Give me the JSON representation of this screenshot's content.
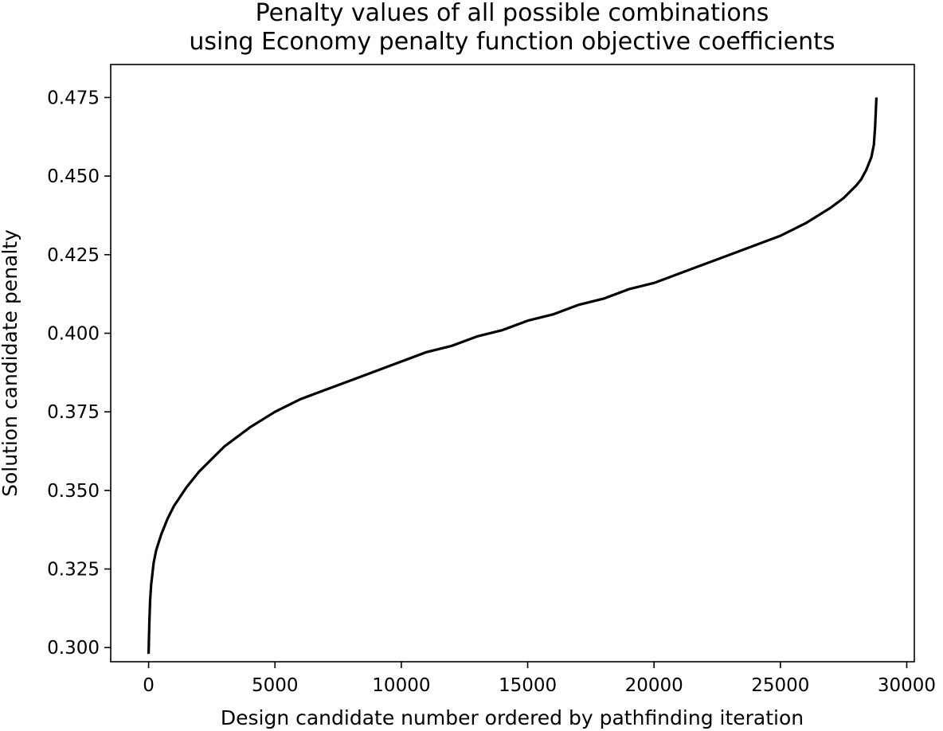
{
  "chart_data": {
    "type": "line",
    "title_lines": [
      "Penalty values of all possible combinations",
      "using Economy penalty function objective coefficients"
    ],
    "xlabel": "Design candidate number ordered by pathfinding iteration",
    "ylabel": "Solution candidate penalty",
    "xlim": [
      -1500,
      30300
    ],
    "ylim": [
      0.2955,
      0.4855
    ],
    "x_ticks": [
      0,
      5000,
      10000,
      15000,
      20000,
      25000,
      30000
    ],
    "x_tick_labels": [
      "0",
      "5000",
      "10000",
      "15000",
      "20000",
      "25000",
      "30000"
    ],
    "y_ticks": [
      0.3,
      0.325,
      0.35,
      0.375,
      0.4,
      0.425,
      0.45,
      0.475
    ],
    "y_tick_labels": [
      "0.300",
      "0.325",
      "0.350",
      "0.375",
      "0.400",
      "0.425",
      "0.450",
      "0.475"
    ],
    "grid": false,
    "line_color": "#000000",
    "series": [
      {
        "x": [
          0,
          25,
          60,
          100,
          200,
          300,
          500,
          750,
          1000,
          1500,
          2000,
          2500,
          3000,
          4000,
          5000,
          6000,
          7000,
          8000,
          9000,
          10000,
          11000,
          12000,
          13000,
          14000,
          15000,
          16000,
          17000,
          18000,
          19000,
          20000,
          21000,
          22000,
          23000,
          24000,
          25000,
          26000,
          27000,
          27500,
          28000,
          28200,
          28400,
          28500,
          28600,
          28700,
          28750,
          28800
        ],
        "y": [
          0.298,
          0.307,
          0.315,
          0.32,
          0.327,
          0.331,
          0.336,
          0.341,
          0.345,
          0.351,
          0.356,
          0.36,
          0.364,
          0.37,
          0.375,
          0.379,
          0.382,
          0.385,
          0.388,
          0.391,
          0.394,
          0.396,
          0.399,
          0.401,
          0.404,
          0.406,
          0.409,
          0.411,
          0.414,
          0.416,
          0.419,
          0.422,
          0.425,
          0.428,
          0.431,
          0.435,
          0.44,
          0.443,
          0.447,
          0.449,
          0.452,
          0.454,
          0.456,
          0.46,
          0.466,
          0.475
        ]
      }
    ]
  }
}
